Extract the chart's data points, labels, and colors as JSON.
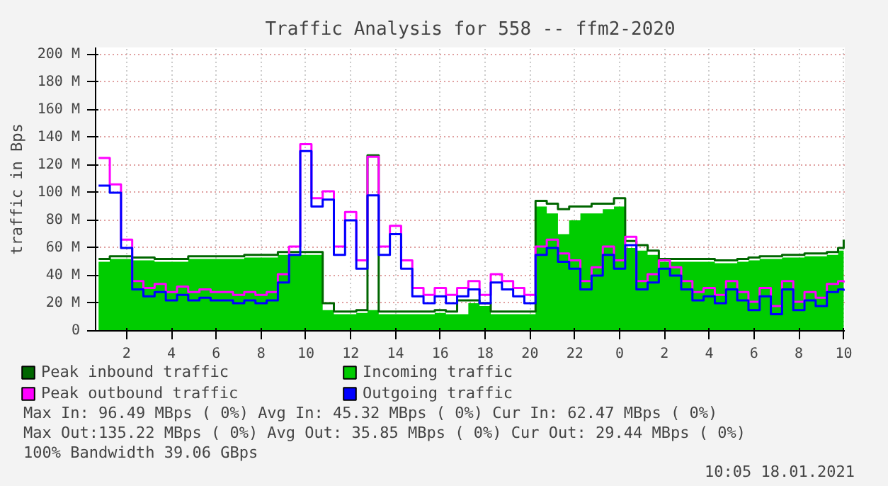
{
  "chart_data": {
    "type": "step",
    "title": "Traffic Analysis for 558 -- ffm2-2020",
    "ylabel": "traffic in Bps",
    "x": [
      "2021-01-17T00:45",
      "2021-01-17T01:15",
      "2021-01-17T01:45",
      "2021-01-17T02:15",
      "2021-01-17T02:45",
      "2021-01-17T03:15",
      "2021-01-17T03:45",
      "2021-01-17T04:15",
      "2021-01-17T04:45",
      "2021-01-17T05:15",
      "2021-01-17T05:45",
      "2021-01-17T06:15",
      "2021-01-17T06:45",
      "2021-01-17T07:15",
      "2021-01-17T07:45",
      "2021-01-17T08:15",
      "2021-01-17T08:45",
      "2021-01-17T09:15",
      "2021-01-17T09:45",
      "2021-01-17T10:15",
      "2021-01-17T10:45",
      "2021-01-17T11:15",
      "2021-01-17T11:45",
      "2021-01-17T12:15",
      "2021-01-17T12:45",
      "2021-01-17T13:15",
      "2021-01-17T13:45",
      "2021-01-17T14:15",
      "2021-01-17T14:45",
      "2021-01-17T15:15",
      "2021-01-17T15:45",
      "2021-01-17T16:15",
      "2021-01-17T16:45",
      "2021-01-17T17:15",
      "2021-01-17T17:45",
      "2021-01-17T18:15",
      "2021-01-17T18:45",
      "2021-01-17T19:15",
      "2021-01-17T19:45",
      "2021-01-17T20:15",
      "2021-01-17T20:45",
      "2021-01-17T21:15",
      "2021-01-17T21:45",
      "2021-01-17T22:15",
      "2021-01-17T22:45",
      "2021-01-17T23:15",
      "2021-01-17T23:45",
      "2021-01-18T00:15",
      "2021-01-18T00:45",
      "2021-01-18T01:15",
      "2021-01-18T01:45",
      "2021-01-18T02:15",
      "2021-01-18T02:45",
      "2021-01-18T03:15",
      "2021-01-18T03:45",
      "2021-01-18T04:15",
      "2021-01-18T04:45",
      "2021-01-18T05:15",
      "2021-01-18T05:45",
      "2021-01-18T06:15",
      "2021-01-18T06:45",
      "2021-01-18T07:15",
      "2021-01-18T07:45",
      "2021-01-18T08:15",
      "2021-01-18T08:45",
      "2021-01-18T09:15",
      "2021-01-18T09:45",
      "2021-01-18T10:00"
    ],
    "series": [
      {
        "name": "Peak inbound traffic",
        "color": "#006600",
        "values": [
          52,
          54,
          54,
          53,
          53,
          52,
          52,
          52,
          54,
          54,
          54,
          54,
          54,
          55,
          55,
          55,
          57,
          57,
          57,
          57,
          20,
          14,
          14,
          15,
          127,
          14,
          14,
          14,
          14,
          14,
          15,
          14,
          22,
          22,
          20,
          14,
          14,
          14,
          14,
          94,
          92,
          88,
          90,
          90,
          92,
          92,
          96,
          65,
          62,
          58,
          52,
          52,
          52,
          52,
          52,
          51,
          51,
          52,
          53,
          54,
          54,
          55,
          55,
          56,
          56,
          57,
          60,
          66
        ]
      },
      {
        "name": "Incoming traffic",
        "color": "#00cc00",
        "type": "area",
        "values": [
          50,
          52,
          52,
          51,
          51,
          50,
          50,
          50,
          52,
          52,
          52,
          52,
          52,
          53,
          53,
          53,
          55,
          55,
          55,
          55,
          15,
          12,
          12,
          13,
          15,
          12,
          12,
          12,
          12,
          12,
          13,
          12,
          12,
          20,
          18,
          12,
          12,
          12,
          12,
          90,
          85,
          70,
          80,
          85,
          85,
          88,
          90,
          60,
          58,
          55,
          50,
          50,
          50,
          50,
          50,
          49,
          49,
          50,
          51,
          52,
          52,
          53,
          53,
          54,
          54,
          55,
          58,
          63
        ]
      },
      {
        "name": "Peak outbound traffic",
        "color": "#ff00ff",
        "values": [
          125,
          106,
          66,
          36,
          31,
          34,
          28,
          32,
          28,
          30,
          28,
          28,
          26,
          28,
          26,
          28,
          41,
          61,
          135,
          96,
          101,
          61,
          86,
          51,
          126,
          61,
          76,
          51,
          31,
          26,
          31,
          26,
          31,
          36,
          26,
          41,
          36,
          31,
          26,
          61,
          66,
          56,
          51,
          36,
          46,
          61,
          51,
          68,
          36,
          41,
          51,
          46,
          36,
          28,
          31,
          26,
          36,
          28,
          21,
          31,
          18,
          36,
          21,
          28,
          24,
          34,
          36,
          35
        ]
      },
      {
        "name": "Outgoing traffic",
        "color": "#0000ff",
        "values": [
          105,
          100,
          60,
          30,
          25,
          28,
          22,
          26,
          22,
          24,
          22,
          22,
          20,
          22,
          20,
          22,
          35,
          55,
          130,
          90,
          95,
          55,
          80,
          45,
          98,
          55,
          70,
          45,
          25,
          20,
          25,
          20,
          25,
          30,
          20,
          35,
          30,
          25,
          20,
          55,
          60,
          50,
          45,
          30,
          40,
          55,
          45,
          62,
          30,
          35,
          45,
          40,
          30,
          22,
          25,
          20,
          30,
          22,
          15,
          25,
          12,
          30,
          15,
          22,
          18,
          28,
          30,
          29
        ]
      }
    ],
    "xlim": [
      "2021-01-17T00:37",
      "2021-01-18T10:03"
    ],
    "xticks": [
      {
        "value": "2021-01-17T02:00",
        "label": "2"
      },
      {
        "value": "2021-01-17T04:00",
        "label": "4"
      },
      {
        "value": "2021-01-17T06:00",
        "label": "6"
      },
      {
        "value": "2021-01-17T08:00",
        "label": "8"
      },
      {
        "value": "2021-01-17T10:00",
        "label": "10"
      },
      {
        "value": "2021-01-17T12:00",
        "label": "12"
      },
      {
        "value": "2021-01-17T14:00",
        "label": "14"
      },
      {
        "value": "2021-01-17T16:00",
        "label": "16"
      },
      {
        "value": "2021-01-17T18:00",
        "label": "18"
      },
      {
        "value": "2021-01-17T20:00",
        "label": "20"
      },
      {
        "value": "2021-01-17T22:00",
        "label": "22"
      },
      {
        "value": "2021-01-18T00:00",
        "label": "0"
      },
      {
        "value": "2021-01-18T02:00",
        "label": "2"
      },
      {
        "value": "2021-01-18T04:00",
        "label": "4"
      },
      {
        "value": "2021-01-18T06:00",
        "label": "6"
      },
      {
        "value": "2021-01-18T08:00",
        "label": "8"
      },
      {
        "value": "2021-01-18T10:00",
        "label": "10"
      }
    ],
    "ylim": [
      0,
      205
    ],
    "yticks": [
      0,
      {
        "value": 20,
        "label": "20 M"
      },
      {
        "value": 40,
        "label": "40 M"
      },
      {
        "value": 60,
        "label": "60 M"
      },
      {
        "value": 80,
        "label": "80 M"
      },
      {
        "value": 100,
        "label": "100 M"
      },
      {
        "value": 120,
        "label": "120 M"
      },
      {
        "value": 140,
        "label": "140 M"
      },
      {
        "value": 160,
        "label": "160 M"
      },
      {
        "value": 180,
        "label": "180 M"
      },
      {
        "value": 200,
        "label": "200 M"
      }
    ],
    "grid": true,
    "legend": "bottom",
    "line_style": "solid",
    "annotations": [
      "Max In:  96.49 MBps ( 0%)  Avg In:  45.32 MBps ( 0%)  Cur In:  62.47 MBps ( 0%)",
      "Max Out:135.22 MBps ( 0%)  Avg Out: 35.85 MBps ( 0%)  Cur Out: 29.44 MBps ( 0%)",
      "100% Bandwidth 39.06 GBps",
      "10:05 18.01.2021"
    ]
  }
}
